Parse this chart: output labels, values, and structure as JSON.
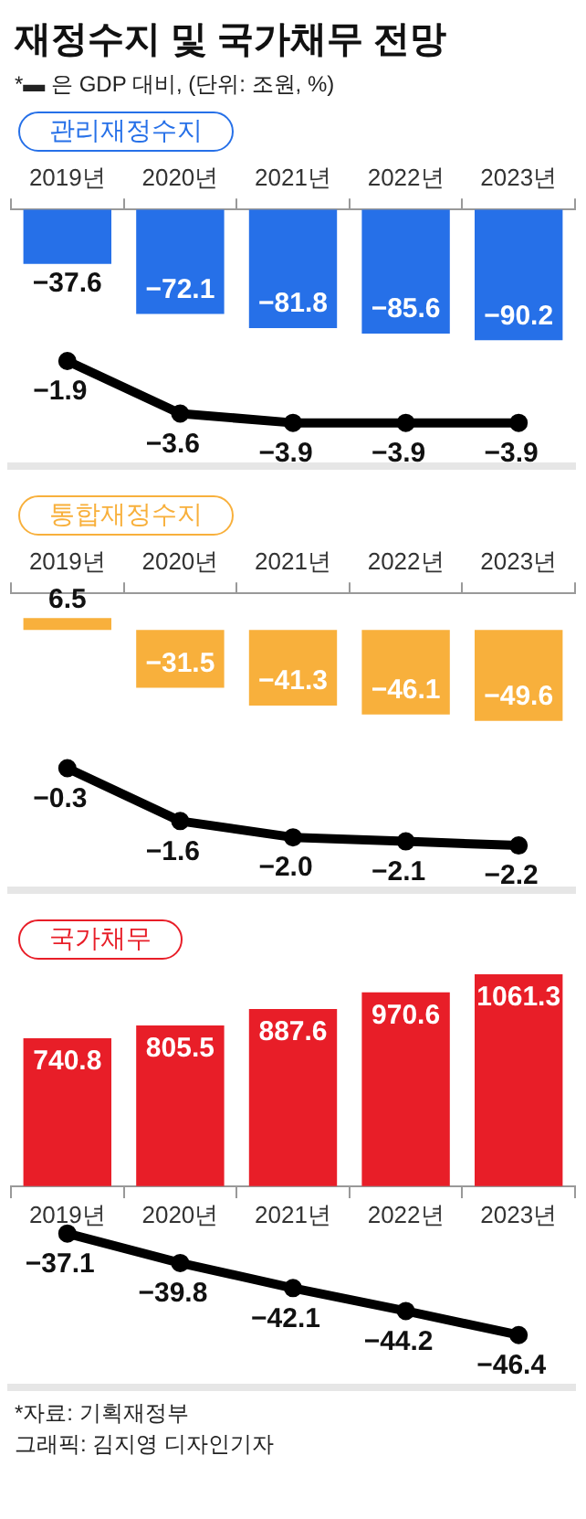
{
  "chart_data": [
    {
      "type": "bar",
      "title": "재정수지 및 국가채무 전망",
      "subtitle": "*▬ 은 GDP 대비, (단위: 조원, %)",
      "categories": [
        "2019년",
        "2020년",
        "2021년",
        "2022년",
        "2023년"
      ],
      "marker": "circle",
      "ylim": [
        -177,
        0
      ],
      "y2lim": [
        -5.3,
        3
      ],
      "series": [
        {
          "name": "관리재정수지",
          "type": "bar",
          "color": "#2670e8",
          "values": [
            -37.6,
            -72.1,
            -81.8,
            -85.6,
            -90.2
          ],
          "value_labels": [
            "−37.6",
            "−72.1",
            "−81.8",
            "−85.6",
            "−90.2"
          ]
        },
        {
          "type": "line",
          "axis": "y2",
          "color": "#000000",
          "values": [
            -1.9,
            -3.6,
            -3.9,
            -3.9,
            -3.9
          ],
          "value_labels": [
            "−1.9",
            "−3.6",
            "−3.9",
            "−3.9",
            "−3.9"
          ]
        }
      ]
    },
    {
      "type": "bar",
      "categories": [
        "2019년",
        "2020년",
        "2021년",
        "2022년",
        "2023년"
      ],
      "marker": "circle",
      "ylim": [
        -142,
        20
      ],
      "y2lim": [
        -3.3,
        4
      ],
      "series": [
        {
          "name": "통합재정수지",
          "type": "bar",
          "color": "#f8b03c",
          "values": [
            6.5,
            -31.5,
            -41.3,
            -46.1,
            -49.6
          ],
          "value_labels": [
            "6.5",
            "−31.5",
            "−41.3",
            "−46.1",
            "−49.6"
          ]
        },
        {
          "type": "line",
          "axis": "y2",
          "color": "#000000",
          "values": [
            -0.3,
            -1.6,
            -2.0,
            -2.1,
            -2.2
          ],
          "value_labels": [
            "−0.3",
            "−1.6",
            "−2.0",
            "−2.1",
            "−2.2"
          ]
        }
      ]
    },
    {
      "type": "bar",
      "categories": [
        "2019년",
        "2020년",
        "2021년",
        "2022년",
        "2023년"
      ],
      "marker": "circle",
      "annotations": [
        "*자료: 기획재정부",
        "그래픽: 김지영 디자인기자"
      ],
      "ylim": [
        -1010,
        1080
      ],
      "y2lim": [
        -51.2,
        -13
      ],
      "series": [
        {
          "name": "국가채무",
          "type": "bar",
          "color": "#e81e28",
          "values": [
            740.8,
            805.5,
            887.6,
            970.6,
            1061.3
          ],
          "value_labels": [
            "740.8",
            "805.5",
            "887.6",
            "970.6",
            "1061.3"
          ]
        },
        {
          "type": "line",
          "axis": "y2",
          "color": "#000000",
          "values": [
            -37.1,
            -39.8,
            -42.1,
            -44.2,
            -46.4
          ],
          "value_labels": [
            "−37.1",
            "−39.8",
            "−42.1",
            "−44.2",
            "−46.4"
          ]
        }
      ]
    }
  ]
}
